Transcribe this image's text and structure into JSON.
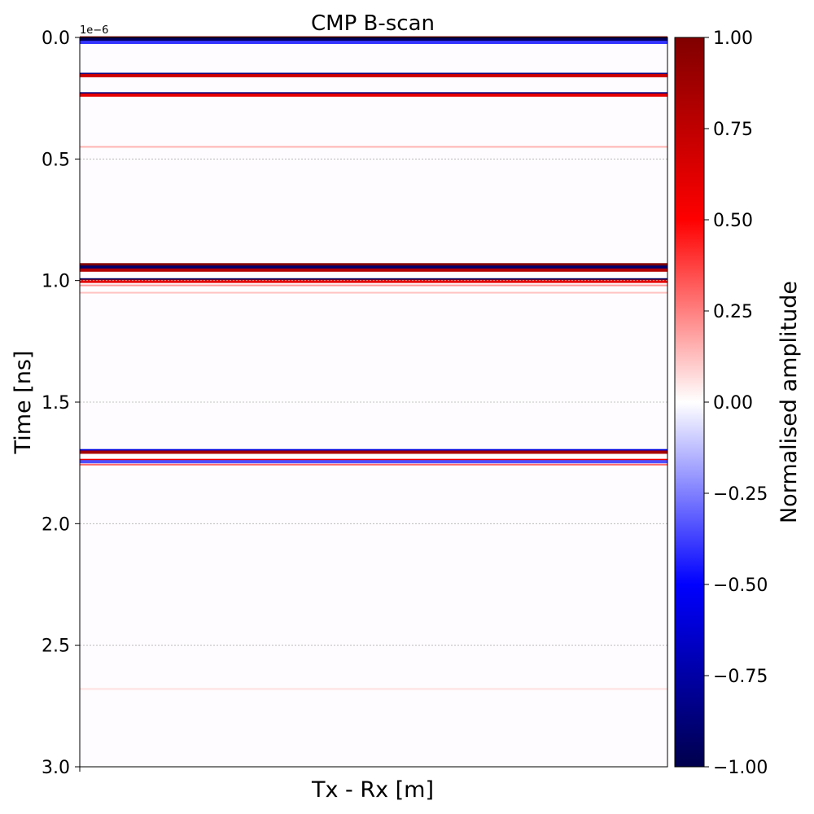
{
  "chart_data": {
    "type": "heatmap",
    "title": "CMP B-scan",
    "xlabel": "Tx - Rx [m]",
    "ylabel": "Time [ns]",
    "y_offset_label": "1e−6",
    "ylim": [
      0.0,
      3.0
    ],
    "y_inverted": true,
    "yticks": [
      0.0,
      0.5,
      1.0,
      1.5,
      2.0,
      2.5,
      3.0
    ],
    "ytick_labels": [
      "0.0",
      "0.5",
      "1.0",
      "1.5",
      "2.0",
      "2.5",
      "3.0"
    ],
    "grid": "horizontal dashed",
    "colormap": "seismic",
    "colorbar": {
      "label": "Normalised amplitude",
      "range": [
        -1.0,
        1.0
      ],
      "ticks": [
        1.0,
        0.75,
        0.5,
        0.25,
        0.0,
        -0.25,
        -0.5,
        -0.75,
        -1.0
      ],
      "tick_labels": [
        "1.00",
        "0.75",
        "0.50",
        "0.25",
        "0.00",
        "−0.25",
        "−0.50",
        "−0.75",
        "−1.00"
      ],
      "stops": [
        {
          "value": 1.0,
          "color": "#800000"
        },
        {
          "value": 0.5,
          "color": "#ff0000"
        },
        {
          "value": 0.0,
          "color": "#ffffff"
        },
        {
          "value": -0.5,
          "color": "#0000ff"
        },
        {
          "value": -1.0,
          "color": "#00004c"
        }
      ]
    },
    "reflections": [
      {
        "time": 0.002,
        "amplitude": 1.0
      },
      {
        "time": 0.008,
        "amplitude": -0.95
      },
      {
        "time": 0.02,
        "amplitude": -0.4
      },
      {
        "time": 0.152,
        "amplitude": -0.85
      },
      {
        "time": 0.157,
        "amplitude": 0.7
      },
      {
        "time": 0.232,
        "amplitude": -0.85
      },
      {
        "time": 0.237,
        "amplitude": 0.6
      },
      {
        "time": 0.45,
        "amplitude": 0.15
      },
      {
        "time": 0.935,
        "amplitude": 1.0
      },
      {
        "time": 0.945,
        "amplitude": -0.9
      },
      {
        "time": 0.957,
        "amplitude": 0.8
      },
      {
        "time": 0.997,
        "amplitude": -0.95
      },
      {
        "time": 1.003,
        "amplitude": 0.6
      },
      {
        "time": 1.02,
        "amplitude": 0.2
      },
      {
        "time": 1.05,
        "amplitude": 0.12
      },
      {
        "time": 1.7,
        "amplitude": -0.6
      },
      {
        "time": 1.706,
        "amplitude": 0.85
      },
      {
        "time": 1.74,
        "amplitude": 0.55
      },
      {
        "time": 1.745,
        "amplitude": -0.35
      },
      {
        "time": 1.757,
        "amplitude": 0.3
      },
      {
        "time": 2.68,
        "amplitude": 0.06
      }
    ]
  }
}
